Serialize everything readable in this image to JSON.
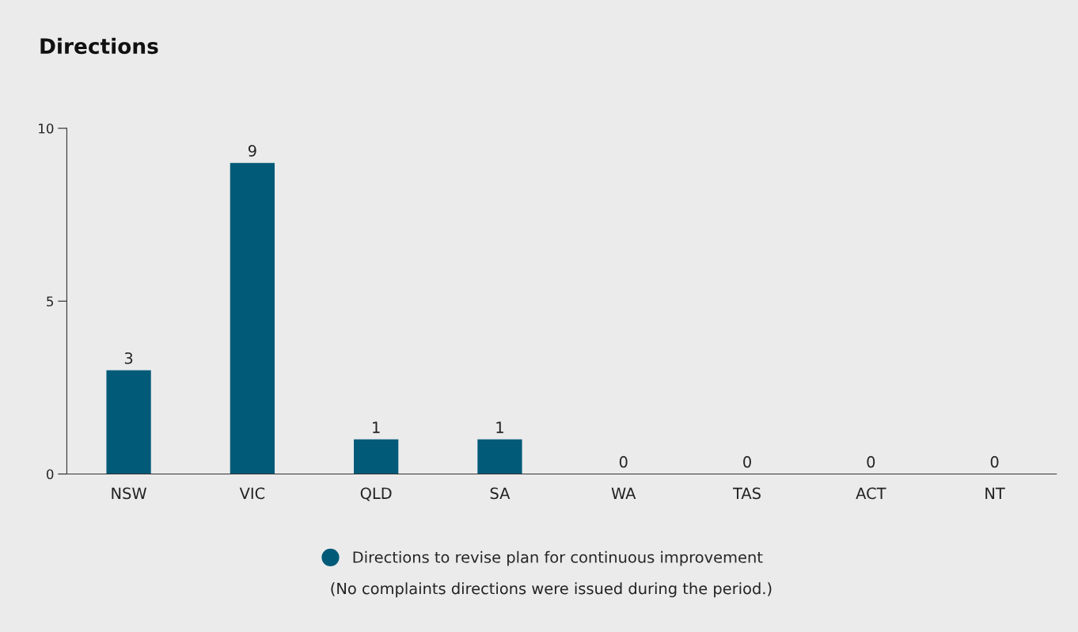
{
  "chart_data": {
    "type": "bar",
    "title": "Directions",
    "categories": [
      "NSW",
      "VIC",
      "QLD",
      "SA",
      "WA",
      "TAS",
      "ACT",
      "NT"
    ],
    "series": [
      {
        "name": "Directions to revise plan for continuous improvement",
        "color": "#005a78",
        "values": [
          3,
          9,
          1,
          1,
          0,
          0,
          0,
          0
        ]
      }
    ],
    "ylim": [
      0,
      10
    ],
    "yticks": [
      0,
      5,
      10
    ],
    "grid": false,
    "legend": "bottom",
    "data_labels": true,
    "annotations": [
      "(No complaints directions were issued during the period.)"
    ]
  }
}
